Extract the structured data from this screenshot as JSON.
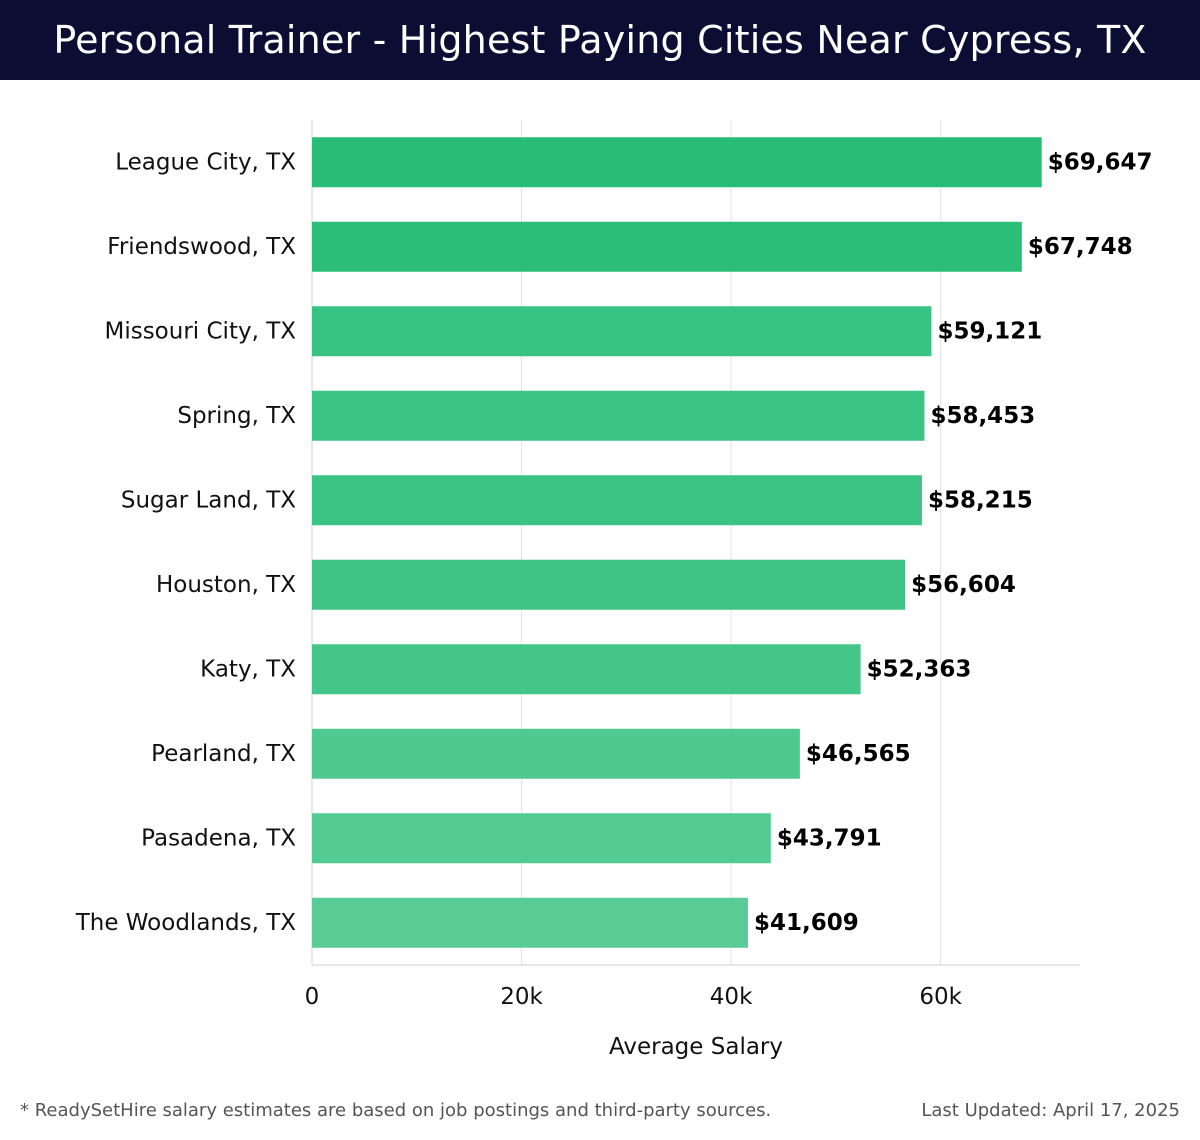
{
  "header": {
    "title": "Personal Trainer - Highest Paying Cities Near Cypress, TX"
  },
  "chart_data": {
    "type": "bar",
    "orientation": "horizontal",
    "title": "Personal Trainer - Highest Paying Cities Near Cypress, TX",
    "xlabel": "Average Salary",
    "ylabel": "",
    "categories": [
      "League City, TX",
      "Friendswood, TX",
      "Missouri City, TX",
      "Spring, TX",
      "Sugar Land, TX",
      "Houston, TX",
      "Katy, TX",
      "Pearland, TX",
      "Pasadena, TX",
      "The Woodlands, TX"
    ],
    "values": [
      69647,
      67748,
      59121,
      58453,
      58215,
      56604,
      52363,
      46565,
      43791,
      41609
    ],
    "value_labels": [
      "$69,647",
      "$67,748",
      "$59,121",
      "$58,453",
      "$58,215",
      "$56,604",
      "$52,363",
      "$46,565",
      "$43,791",
      "$41,609"
    ],
    "xlim": [
      0,
      73300
    ],
    "x_ticks": [
      0,
      20000,
      40000,
      60000
    ],
    "x_tick_labels": [
      "0",
      "20k",
      "40k",
      "60k"
    ],
    "grid": "vertical",
    "bar_color_dark": "#27bd77",
    "bar_color_light": "#58cc94"
  },
  "footer": {
    "note": "* ReadySetHire salary estimates are based on job postings and third-party sources.",
    "updated": "Last Updated: April 17, 2025"
  }
}
